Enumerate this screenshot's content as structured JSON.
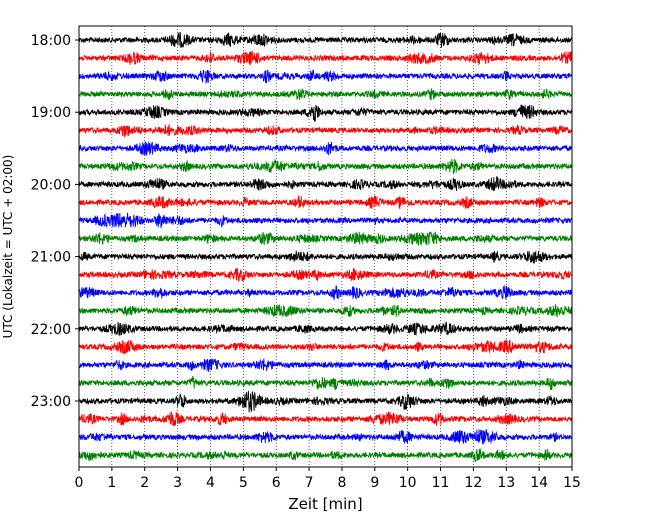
{
  "chart_data": {
    "type": "line",
    "subtype": "helicorder",
    "xlabel": "Zeit  [min]",
    "ylabel": "UTC (Lokalzeit = UTC + 02:00)",
    "xlim": [
      0,
      15
    ],
    "x_ticks": [
      0,
      1,
      2,
      3,
      4,
      5,
      6,
      7,
      8,
      9,
      10,
      11,
      12,
      13,
      14,
      15
    ],
    "x_grid": "dotted vertical lines at each minute",
    "y_tick_labels": [
      "18:00",
      "19:00",
      "20:00",
      "21:00",
      "22:00",
      "23:00"
    ],
    "rows_per_hour": 4,
    "row_minutes": 15,
    "row_start_times": [
      "18:00",
      "18:15",
      "18:30",
      "18:45",
      "19:00",
      "19:15",
      "19:30",
      "19:45",
      "20:00",
      "20:15",
      "20:30",
      "20:45",
      "21:00",
      "21:15",
      "21:30",
      "21:45",
      "22:00",
      "22:15",
      "22:30",
      "22:45",
      "23:00",
      "23:15",
      "23:30",
      "23:45"
    ],
    "trace_color_cycle": [
      "#000000",
      "#ff0000",
      "#0000ff",
      "#008000"
    ],
    "trace_note": "continuous seismic noise trace per row; amplitude bursts visible at many positions"
  }
}
